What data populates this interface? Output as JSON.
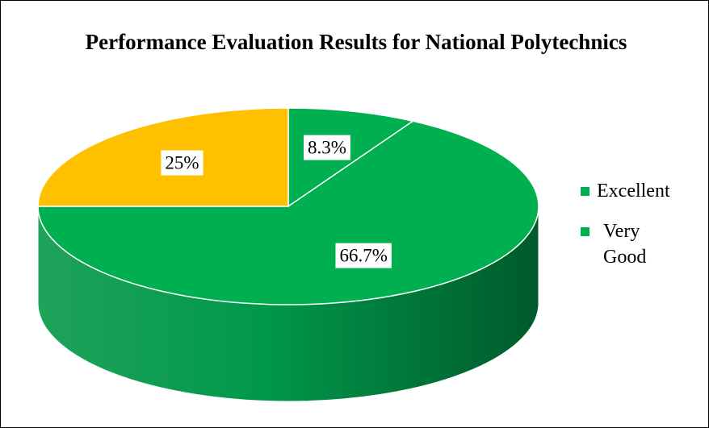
{
  "chart_data": {
    "type": "pie",
    "title": "Performance Evaluation Results for National Polytechnics",
    "categories": [
      "Excellent",
      "Very Good",
      null
    ],
    "values": [
      8.3,
      66.7,
      25
    ],
    "value_labels": [
      "8.3%",
      "66.7%",
      "25%"
    ],
    "colors": [
      "#00b050",
      "#00b050",
      "#ffc000"
    ],
    "legend": "right"
  }
}
